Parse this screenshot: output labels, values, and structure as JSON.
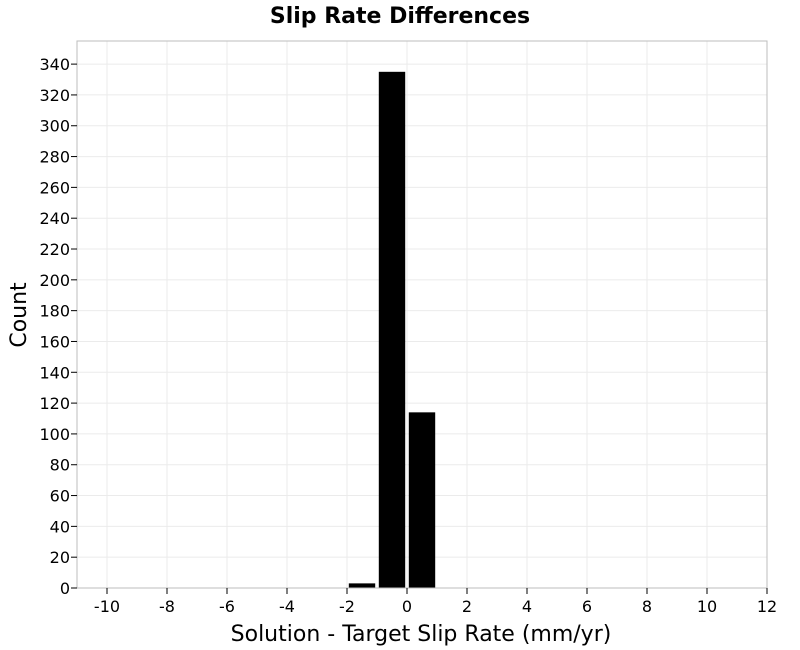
{
  "chart_data": {
    "type": "bar",
    "title": "Slip Rate Differences",
    "xlabel": "Solution - Target Slip Rate (mm/yr)",
    "ylabel": "Count",
    "xlim": [
      -11,
      12
    ],
    "ylim": [
      0,
      355
    ],
    "x_ticks": [
      -10,
      -8,
      -6,
      -4,
      -2,
      0,
      2,
      4,
      6,
      8,
      10,
      12
    ],
    "y_ticks": [
      0,
      20,
      40,
      60,
      80,
      100,
      120,
      140,
      160,
      180,
      200,
      220,
      240,
      260,
      280,
      300,
      320,
      340
    ],
    "grid": true,
    "bin_width": 1,
    "bars": [
      {
        "x": -1.5,
        "value": 3
      },
      {
        "x": -0.5,
        "value": 335
      },
      {
        "x": 0.5,
        "value": 114
      }
    ],
    "bar_color": "#000000"
  }
}
